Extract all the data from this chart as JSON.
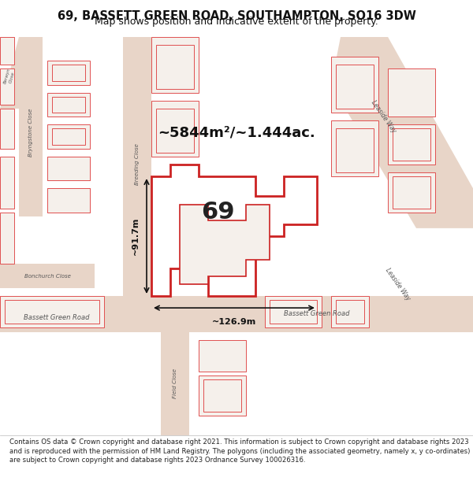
{
  "title_line1": "69, BASSETT GREEN ROAD, SOUTHAMPTON, SO16 3DW",
  "title_line2": "Map shows position and indicative extent of the property.",
  "area_text": "~5844m²/~1.444ac.",
  "number_label": "69",
  "dim_horizontal": "~126.9m",
  "dim_vertical": "~91.7m",
  "footer_text": "Contains OS data © Crown copyright and database right 2021. This information is subject to Crown copyright and database rights 2023 and is reproduced with the permission of HM Land Registry. The polygons (including the associated geometry, namely x, y co-ordinates) are subject to Crown copyright and database rights 2023 Ordnance Survey 100026316.",
  "map_bg": "#f0ebe4",
  "road_color": "#e8d5c8",
  "building_outline": "#e05050",
  "building_fill": "#f5f0eb",
  "highlight_stroke": "#cc2222",
  "title_bg": "#ffffff",
  "footer_bg": "#ffffff",
  "text_color": "#111111"
}
